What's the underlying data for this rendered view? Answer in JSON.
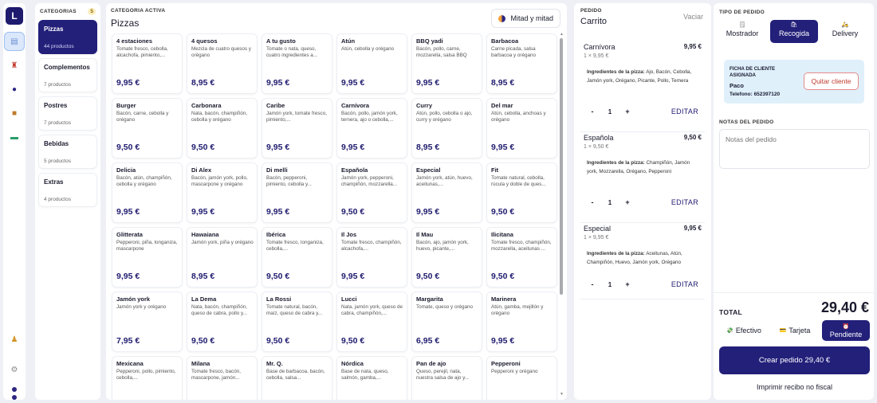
{
  "app": {
    "logo_letter": "L"
  },
  "rail": {
    "icons": [
      "document-icon",
      "chef-icon",
      "user-icon",
      "box-icon",
      "cash-icon",
      "staff-icon",
      "settings-icon"
    ]
  },
  "categories": {
    "label": "CATEGORIAS",
    "count": "5",
    "items": [
      {
        "name": "Pizzas",
        "count": "44 productos"
      },
      {
        "name": "Complementos",
        "count": "7 productos"
      },
      {
        "name": "Postres",
        "count": "7 productos"
      },
      {
        "name": "Bebidas",
        "count": "5 productos"
      },
      {
        "name": "Extras",
        "count": "4 productos"
      }
    ]
  },
  "products": {
    "label": "CATEGORIA ACTIVA",
    "title": "Pizzas",
    "mitad_label": "Mitad y mitad",
    "items": [
      {
        "name": "4 estaciones",
        "desc": "Tomate fresco, cebolla, alcachofa, pimiento,...",
        "price": "9,95 €"
      },
      {
        "name": "4 quesos",
        "desc": "Mezcla de cuatro quesos y orégano",
        "price": "8,95 €"
      },
      {
        "name": "A tu gusto",
        "desc": "Tomate o nata, queso, cuatro ingredientes a...",
        "price": "9,95 €"
      },
      {
        "name": "Atún",
        "desc": "Atún, cebolla y orégano",
        "price": "9,95 €"
      },
      {
        "name": "BBQ yadi",
        "desc": "Bacón, pollo, carne, mozzarella, salsa BBQ",
        "price": "9,95 €"
      },
      {
        "name": "Barbacoa",
        "desc": "Carne picada, salsa barbacoa y orégano",
        "price": "8,95 €"
      },
      {
        "name": "Burger",
        "desc": "Bacón, carne, cebolla y orégano",
        "price": "9,50 €"
      },
      {
        "name": "Carbonara",
        "desc": "Nata, bacón, champiñón, cebolla y orégano",
        "price": "9,50 €"
      },
      {
        "name": "Caribe",
        "desc": "Jamón york, tomate fresco, pimiento,...",
        "price": "9,95 €"
      },
      {
        "name": "Carnívora",
        "desc": "Bacón, pollo, jamón york, ternera, ajo o cebolla,...",
        "price": "9,95 €"
      },
      {
        "name": "Curry",
        "desc": "Atún, pollo, cebolla o ajo, curry y orégano",
        "price": "8,95 €"
      },
      {
        "name": "Del mar",
        "desc": "Atún, cebolla, anchoas y orégano",
        "price": "9,95 €"
      },
      {
        "name": "Delicia",
        "desc": "Bacón, atún, champiñón, cebolla y orégano",
        "price": "9,95 €"
      },
      {
        "name": "Di Alex",
        "desc": "Bacón, jamón york, pollo, mascarpone y orégano",
        "price": "9,95 €"
      },
      {
        "name": "Di melli",
        "desc": "Bacón, pepperoni, pimiento, cebolla y...",
        "price": "9,95 €"
      },
      {
        "name": "Española",
        "desc": "Jamón york, pepperoni, champiñón, mozzarella...",
        "price": "9,50 €"
      },
      {
        "name": "Especial",
        "desc": "Jamón york, atún, huevo, aceitunas,...",
        "price": "9,95 €"
      },
      {
        "name": "Fit",
        "desc": "Tomate natural, cebolla, rúcula y doble de ques...",
        "price": "9,50 €"
      },
      {
        "name": "Glitterata",
        "desc": "Pepperoni, piña, longaniza, mascarpone",
        "price": "9,95 €"
      },
      {
        "name": "Hawaiana",
        "desc": "Jamón york, piña y orégano",
        "price": "8,95 €"
      },
      {
        "name": "Ibérica",
        "desc": "Tomate fresco, longaniza, cebolla,...",
        "price": "9,50 €"
      },
      {
        "name": "Il Jos",
        "desc": "Tomate fresco, champiñón, alcachofa,...",
        "price": "9,95 €"
      },
      {
        "name": "Il Mau",
        "desc": "Bacón, ajo, jamón york, huevo, picante,...",
        "price": "9,50 €"
      },
      {
        "name": "Ilicitana",
        "desc": "Tomate fresco, champiñón, mozzarella, aceitunas ...",
        "price": "9,50 €"
      },
      {
        "name": "Jamón york",
        "desc": "Jamón york y orégano",
        "price": "7,95 €"
      },
      {
        "name": "La Dema",
        "desc": "Nata, bacón, champiñón, queso de cabra, pollo y...",
        "price": "9,50 €"
      },
      {
        "name": "La Rossi",
        "desc": "Tomate natural, bacón, maíz, queso de cabra y...",
        "price": "9,50 €"
      },
      {
        "name": "Lucci",
        "desc": "Nata, jamón york, queso de cabra, champiñón,...",
        "price": "9,50 €"
      },
      {
        "name": "Margarita",
        "desc": "Tomate, queso y orégano",
        "price": "6,95 €"
      },
      {
        "name": "Marinera",
        "desc": "Atún, gamba, mejillón y orégano",
        "price": "9,95 €"
      },
      {
        "name": "Mexicana",
        "desc": "Pepperoni, pollo, pimiento, cebolla,...",
        "price": ""
      },
      {
        "name": "Milana",
        "desc": "Tomate fresco, bacón, mascarpone, jamón...",
        "price": ""
      },
      {
        "name": "Mr. Q.",
        "desc": "Base de barbacoa, bacón, cebolla, salsa...",
        "price": ""
      },
      {
        "name": "Nórdica",
        "desc": "Base de nata, queso, salmón, gamba,...",
        "price": ""
      },
      {
        "name": "Pan de ajo",
        "desc": "Queso, perejil, nata, nuestra salsa de ajo y...",
        "price": ""
      },
      {
        "name": "Pepperoni",
        "desc": "Pepperoni y orégano",
        "price": ""
      }
    ]
  },
  "cart": {
    "label": "PEDIDO",
    "title": "Carrito",
    "clear_label": "Vaciar",
    "ingredients_label": "Ingredientes de la pizza:",
    "edit_label": "EDITAR",
    "minus": "-",
    "plus": "+",
    "items": [
      {
        "name": "Carnívora",
        "price": "9,95 €",
        "qty_line": "1 × 9,95 €",
        "ingredients": "Ajo, Bacón, Cebolla, Jamón york, Orégano, Picante, Pollo, Ternera",
        "qty": "1"
      },
      {
        "name": "Española",
        "price": "9,50 €",
        "qty_line": "1 × 9,50 €",
        "ingredients": "Champiñón, Jamón york, Mozzarella, Orégano, Pepperoni",
        "qty": "1"
      },
      {
        "name": "Especial",
        "price": "9,95 €",
        "qty_line": "1 × 9,95 €",
        "ingredients": "Aceitunas, Atún, Champiñón, Huevo, Jamón york, Orégano",
        "qty": "1"
      }
    ]
  },
  "order": {
    "type_label": "TIPO DE PEDIDO",
    "types": [
      {
        "label": "Mostrador",
        "icon": "counter-icon",
        "glyph": "🗒"
      },
      {
        "label": "Recogida",
        "icon": "bag-icon",
        "glyph": "🛍"
      },
      {
        "label": "Delivery",
        "icon": "scooter-icon",
        "glyph": "🛵"
      }
    ],
    "client": {
      "title": "FICHA DE CLIENTE ASIGNADA",
      "name": "Paco",
      "phone": "Telefono: 652397120",
      "remove_label": "Quitar cliente"
    },
    "notes_label": "NOTAS DEL PEDIDO",
    "notes_placeholder": "Notas del pedido",
    "total_label": "TOTAL",
    "total_value": "29,40 €",
    "payments": [
      {
        "label": "Efectivo",
        "icon": "cash-icon",
        "glyph": "💸"
      },
      {
        "label": "Tarjeta",
        "icon": "card-icon",
        "glyph": "💳"
      },
      {
        "label": "Pendiente",
        "icon": "clock-icon",
        "glyph": "⏰"
      }
    ],
    "create_label": "Crear pedido 29,40 €",
    "print_label": "Imprimir recibo no fiscal"
  },
  "colors": {
    "accent": "#23207a",
    "client_bg": "#dff0fb",
    "remove": "#c0392b"
  }
}
